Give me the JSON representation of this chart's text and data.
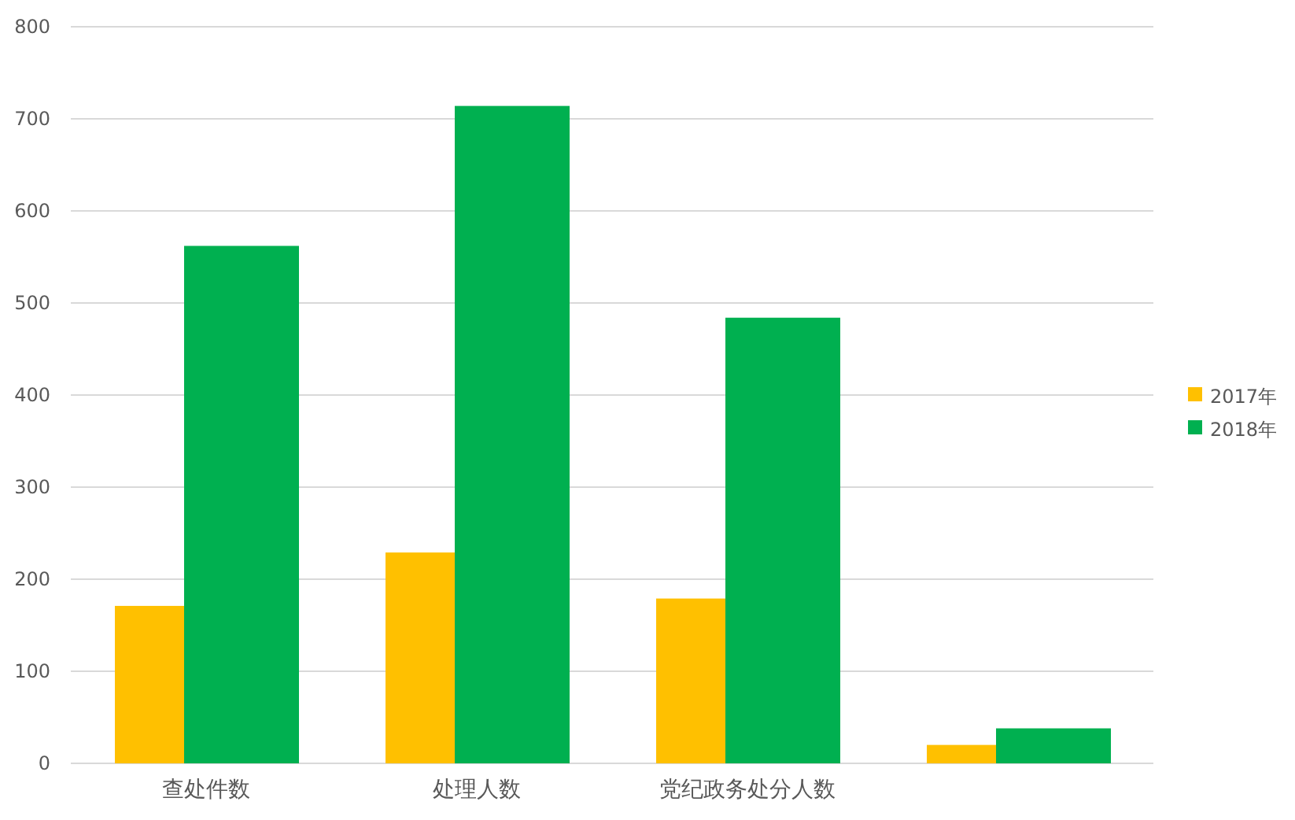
{
  "chart_data": {
    "type": "bar",
    "categories": [
      "查处件数",
      "处理人数",
      "党纪政务处分人数",
      null
    ],
    "series": [
      {
        "name": "2017年",
        "color": "#ffc000",
        "values": [
          171,
          229,
          179,
          20
        ]
      },
      {
        "name": "2018年",
        "color": "#00b050",
        "values": [
          562,
          714,
          484,
          38
        ]
      }
    ],
    "ylim": [
      0,
      800
    ],
    "yticks": [
      0,
      100,
      200,
      300,
      400,
      500,
      600,
      700,
      800
    ],
    "grid": "y",
    "legend": "right"
  }
}
